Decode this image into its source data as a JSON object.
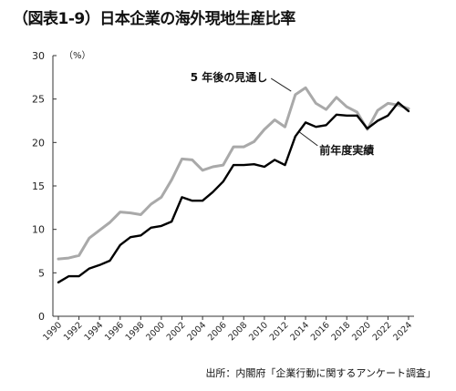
{
  "title": "（図表1-9）日本企業の海外現地生産比率",
  "source": "出所：内閣府「企業行動に関するアンケート調査」",
  "chart_data": {
    "type": "line",
    "unit": "（%）",
    "ylim": [
      0,
      30
    ],
    "yticks": [
      0,
      5,
      10,
      15,
      20,
      25,
      30
    ],
    "xlim": [
      1990,
      2024
    ],
    "xticks": [
      1990,
      1992,
      1994,
      1996,
      1998,
      2000,
      2002,
      2004,
      2006,
      2008,
      2010,
      2012,
      2014,
      2016,
      2018,
      2020,
      2022,
      2024
    ],
    "grid": false,
    "series": [
      {
        "name": "5 年後の見通し",
        "color": "#a9a9a9",
        "x": [
          1990,
          1991,
          1992,
          1993,
          1994,
          1995,
          1996,
          1997,
          1998,
          1999,
          2000,
          2001,
          2002,
          2003,
          2004,
          2005,
          2006,
          2007,
          2008,
          2009,
          2010,
          2011,
          2012,
          2013,
          2014,
          2015,
          2016,
          2017,
          2018,
          2019,
          2020,
          2021,
          2022,
          2023,
          2024
        ],
        "values": [
          6.6,
          6.7,
          7.0,
          9.0,
          9.9,
          10.8,
          12.0,
          11.9,
          11.7,
          12.9,
          13.7,
          15.7,
          18.1,
          18.0,
          16.8,
          17.2,
          17.4,
          19.5,
          19.5,
          20.1,
          21.5,
          22.6,
          21.8,
          25.5,
          26.3,
          24.5,
          23.8,
          25.2,
          24.1,
          23.5,
          21.5,
          23.7,
          24.5,
          24.3,
          23.9
        ]
      },
      {
        "name": "前年度実績",
        "color": "#000000",
        "x": [
          1990,
          1991,
          1992,
          1993,
          1994,
          1995,
          1996,
          1997,
          1998,
          1999,
          2000,
          2001,
          2002,
          2003,
          2004,
          2005,
          2006,
          2007,
          2008,
          2009,
          2010,
          2011,
          2012,
          2013,
          2014,
          2015,
          2016,
          2017,
          2018,
          2019,
          2020,
          2021,
          2022,
          2023,
          2024
        ],
        "values": [
          3.9,
          4.6,
          4.6,
          5.5,
          5.9,
          6.4,
          8.2,
          9.1,
          9.3,
          10.2,
          10.4,
          10.9,
          13.7,
          13.3,
          13.3,
          14.3,
          15.5,
          17.4,
          17.4,
          17.5,
          17.2,
          18.0,
          17.4,
          20.7,
          22.3,
          21.8,
          22.0,
          23.2,
          23.1,
          23.1,
          21.6,
          22.5,
          23.1,
          24.6,
          23.6
        ]
      }
    ]
  }
}
